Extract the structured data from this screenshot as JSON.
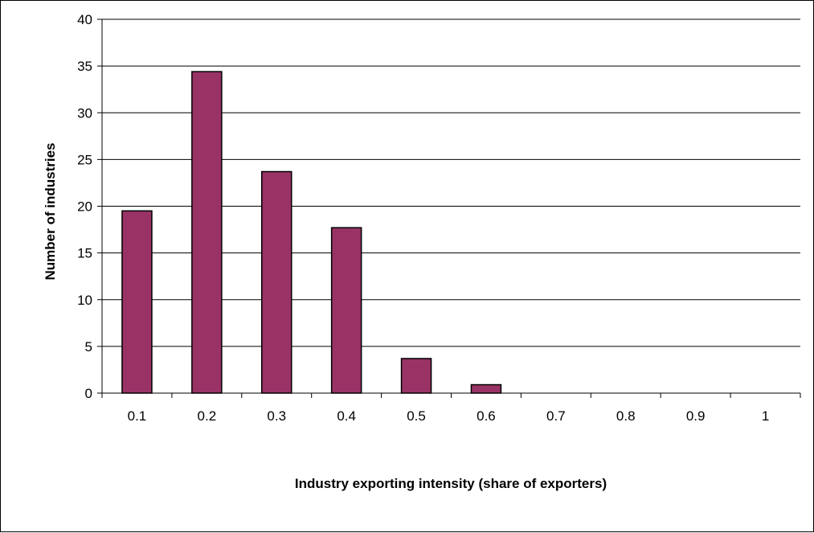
{
  "chart_data": {
    "type": "bar",
    "title": "",
    "xlabel": "Industry exporting intensity (share of exporters)",
    "ylabel": "Number of industries",
    "categories": [
      "0.1",
      "0.2",
      "0.3",
      "0.4",
      "0.5",
      "0.6",
      "0.7",
      "0.8",
      "0.9",
      "1"
    ],
    "values": [
      19.5,
      34.4,
      23.7,
      17.7,
      3.7,
      0.9,
      0,
      0,
      0,
      0
    ],
    "ylim": [
      0,
      40
    ],
    "yticks": [
      "0",
      "5",
      "10",
      "15",
      "20",
      "25",
      "30",
      "35",
      "40"
    ],
    "grid": "horizontal",
    "legend": "none",
    "bar_color": "#993366",
    "bar_edge_color": "#000000"
  }
}
